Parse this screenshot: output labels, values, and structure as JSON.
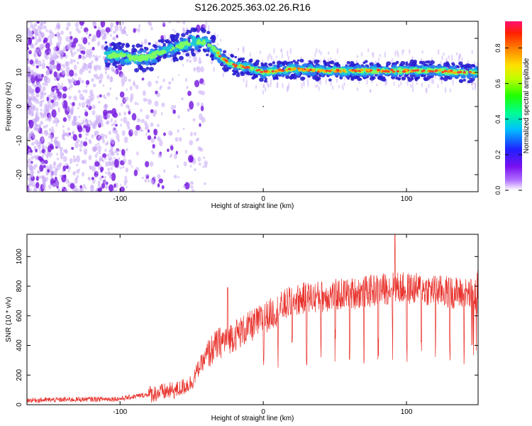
{
  "title": "S126.2025.363.02.26.R16",
  "colors": {
    "snr_line": "#e8302a",
    "spectrogram_dot": "#7a20e0",
    "ridge_low": "#2a20d0",
    "ridge_mid": "#20c8d8",
    "ridge_high": "#ff4020"
  },
  "colorbar": {
    "label": "Normalized spectral amplitude",
    "ticks": [
      "0.0",
      "0.2",
      "0.4",
      "0.6",
      "0.8"
    ],
    "tick_values": [
      0.0,
      0.2,
      0.4,
      0.6,
      0.8
    ],
    "range": [
      0,
      0.95
    ]
  },
  "chart_data": [
    {
      "type": "heatmap",
      "name": "spectrogram",
      "title": "S126.2025.363.02.26.R16",
      "xlabel": "Height of straight line (km)",
      "ylabel": "Frequency (Hz)",
      "xlim": [
        -165,
        150
      ],
      "ylim": [
        -25,
        25
      ],
      "xticks": [
        -100,
        0,
        100
      ],
      "xtick_labels": [
        "-100",
        "0",
        "100"
      ],
      "yticks": [
        -20,
        -10,
        0,
        10,
        20
      ],
      "ytick_labels": [
        "-20",
        "-10",
        "0",
        "10",
        "20"
      ],
      "ridge": {
        "x": [
          -100,
          -90,
          -80,
          -70,
          -60,
          -50,
          -40,
          -33,
          -27,
          -20,
          -10,
          0,
          10,
          20,
          40,
          60,
          80,
          100,
          120,
          140,
          150
        ],
        "y": [
          15,
          14,
          14.5,
          16,
          17.5,
          19,
          19,
          16,
          13.5,
          12,
          11.5,
          10,
          10.5,
          11,
          10.5,
          10.5,
          10.5,
          10.5,
          10.5,
          10,
          10
        ]
      }
    },
    {
      "type": "line",
      "name": "snr",
      "xlabel": "Height of straight line (km)",
      "ylabel": "SNR (10 * v/v)",
      "xlim": [
        -165,
        150
      ],
      "ylim": [
        0,
        1150
      ],
      "xticks": [
        -100,
        0,
        100
      ],
      "xtick_labels": [
        "-100",
        "0",
        "100"
      ],
      "yticks": [
        0,
        200,
        400,
        600,
        800,
        1000
      ],
      "ytick_labels": [
        "0",
        "200",
        "400",
        "600",
        "800",
        "1000"
      ],
      "envelope": {
        "x": [
          -165,
          -100,
          -80,
          -60,
          -50,
          -45,
          -40,
          -35,
          -30,
          -20,
          -10,
          0,
          10,
          20,
          30,
          50,
          70,
          90,
          110,
          130,
          150
        ],
        "y": [
          30,
          40,
          70,
          100,
          150,
          250,
          320,
          380,
          420,
          470,
          520,
          580,
          640,
          700,
          720,
          740,
          760,
          790,
          780,
          760,
          740
        ]
      },
      "peak": {
        "x": 92,
        "y": 1180
      }
    }
  ]
}
